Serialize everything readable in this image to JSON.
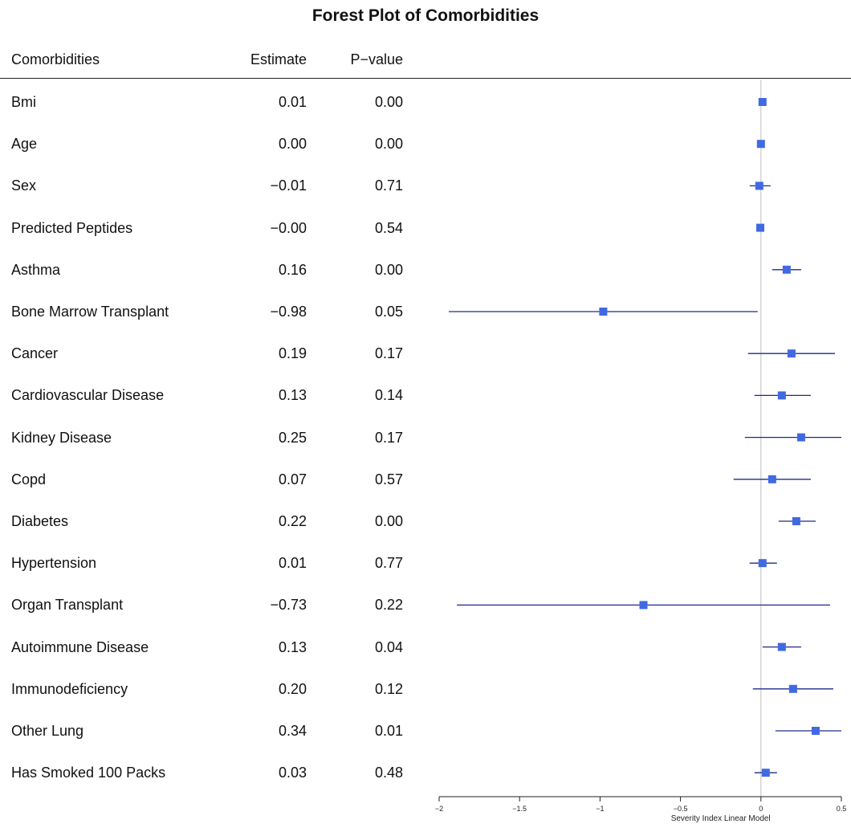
{
  "chart_data": {
    "type": "forest",
    "title": "Forest Plot of Comorbidities",
    "columns": {
      "name": "Comorbidities",
      "estimate": "Estimate",
      "pvalue": "P−value"
    },
    "rows": [
      {
        "name": "Bmi",
        "estimate_text": "0.01",
        "pvalue_text": "0.00",
        "estimate": 0.01,
        "ci": [
          0.005,
          0.015
        ]
      },
      {
        "name": "Age",
        "estimate_text": "0.00",
        "pvalue_text": "0.00",
        "estimate": 0.0,
        "ci": [
          -0.004,
          0.004
        ]
      },
      {
        "name": "Sex",
        "estimate_text": "−0.01",
        "pvalue_text": "0.71",
        "estimate": -0.01,
        "ci": [
          -0.07,
          0.06
        ]
      },
      {
        "name": "Predicted Peptides",
        "estimate_text": "−0.00",
        "pvalue_text": "0.54",
        "estimate": -0.004,
        "ci": [
          -0.015,
          0.007
        ]
      },
      {
        "name": "Asthma",
        "estimate_text": "0.16",
        "pvalue_text": "0.00",
        "estimate": 0.16,
        "ci": [
          0.07,
          0.25
        ]
      },
      {
        "name": "Bone Marrow Transplant",
        "estimate_text": "−0.98",
        "pvalue_text": "0.05",
        "estimate": -0.98,
        "ci": [
          -1.94,
          -0.02
        ]
      },
      {
        "name": "Cancer",
        "estimate_text": "0.19",
        "pvalue_text": "0.17",
        "estimate": 0.19,
        "ci": [
          -0.08,
          0.46
        ]
      },
      {
        "name": "Cardiovascular Disease",
        "estimate_text": "0.13",
        "pvalue_text": "0.14",
        "estimate": 0.13,
        "ci": [
          -0.04,
          0.31
        ]
      },
      {
        "name": "Kidney Disease",
        "estimate_text": "0.25",
        "pvalue_text": "0.17",
        "estimate": 0.25,
        "ci": [
          -0.1,
          0.6
        ]
      },
      {
        "name": "Copd",
        "estimate_text": "0.07",
        "pvalue_text": "0.57",
        "estimate": 0.07,
        "ci": [
          -0.17,
          0.31
        ]
      },
      {
        "name": "Diabetes",
        "estimate_text": "0.22",
        "pvalue_text": "0.00",
        "estimate": 0.22,
        "ci": [
          0.11,
          0.34
        ]
      },
      {
        "name": "Hypertension",
        "estimate_text": "0.01",
        "pvalue_text": "0.77",
        "estimate": 0.01,
        "ci": [
          -0.07,
          0.1
        ]
      },
      {
        "name": "Organ Transplant",
        "estimate_text": "−0.73",
        "pvalue_text": "0.22",
        "estimate": -0.73,
        "ci": [
          -1.89,
          0.43
        ]
      },
      {
        "name": "Autoimmune Disease",
        "estimate_text": "0.13",
        "pvalue_text": "0.04",
        "estimate": 0.13,
        "ci": [
          0.01,
          0.25
        ]
      },
      {
        "name": "Immunodeficiency",
        "estimate_text": "0.20",
        "pvalue_text": "0.12",
        "estimate": 0.2,
        "ci": [
          -0.05,
          0.45
        ]
      },
      {
        "name": "Other Lung",
        "estimate_text": "0.34",
        "pvalue_text": "0.01",
        "estimate": 0.34,
        "ci": [
          0.09,
          0.6
        ]
      },
      {
        "name": "Has Smoked 100 Packs",
        "estimate_text": "0.03",
        "pvalue_text": "0.48",
        "estimate": 0.03,
        "ci": [
          -0.04,
          0.1
        ]
      }
    ],
    "x_axis": {
      "label": "Severity Index Linear Model",
      "range": [
        -2,
        0.5
      ],
      "ticks": [
        -2,
        -1.5,
        -1,
        -0.5,
        0,
        0.5
      ],
      "tick_labels": [
        "−2",
        "−1.5",
        "−1",
        "−0.5",
        "0",
        "0.5"
      ]
    },
    "reference_line": 0,
    "colors": {
      "point": "#4169e1",
      "ci_line": "#1f2a8a",
      "reference_line": "#c8c8c8",
      "axis": "#222222"
    }
  }
}
